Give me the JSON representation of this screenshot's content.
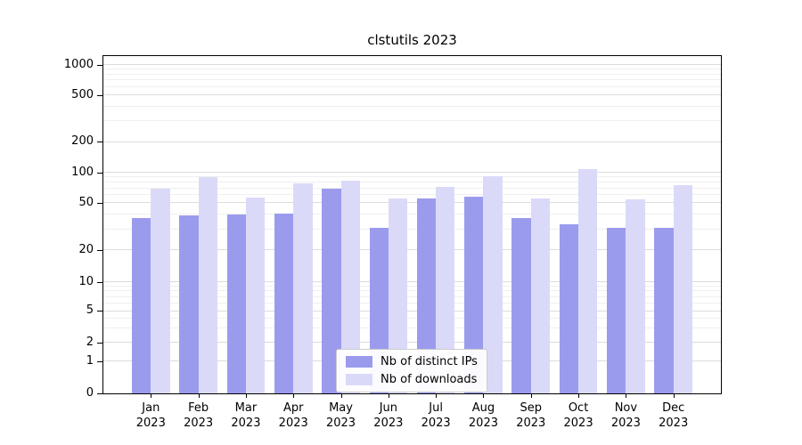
{
  "chart_data": {
    "type": "bar",
    "title": "clstutils 2023",
    "yscale": "symlog",
    "grid": true,
    "legend_position": "lower center",
    "y_ticks": [
      0,
      1,
      2,
      5,
      10,
      20,
      50,
      100,
      200,
      500,
      1000
    ],
    "ylim": [
      0,
      1500
    ],
    "categories": [
      "Jan 2023",
      "Feb 2023",
      "Mar 2023",
      "Apr 2023",
      "May 2023",
      "Jun 2023",
      "Jul 2023",
      "Aug 2023",
      "Sep 2023",
      "Oct 2023",
      "Nov 2023",
      "Dec 2023"
    ],
    "series": [
      {
        "name": "Nb of distinct IPs",
        "color": "#9b9bee",
        "values": [
          37,
          39,
          40,
          41,
          70,
          31,
          55,
          58,
          37,
          33,
          31,
          31
        ]
      },
      {
        "name": "Nb of downloads",
        "color": "#dadaf8",
        "values": [
          70,
          90,
          57,
          78,
          83,
          56,
          72,
          93,
          56,
          110,
          54,
          75
        ]
      }
    ]
  }
}
